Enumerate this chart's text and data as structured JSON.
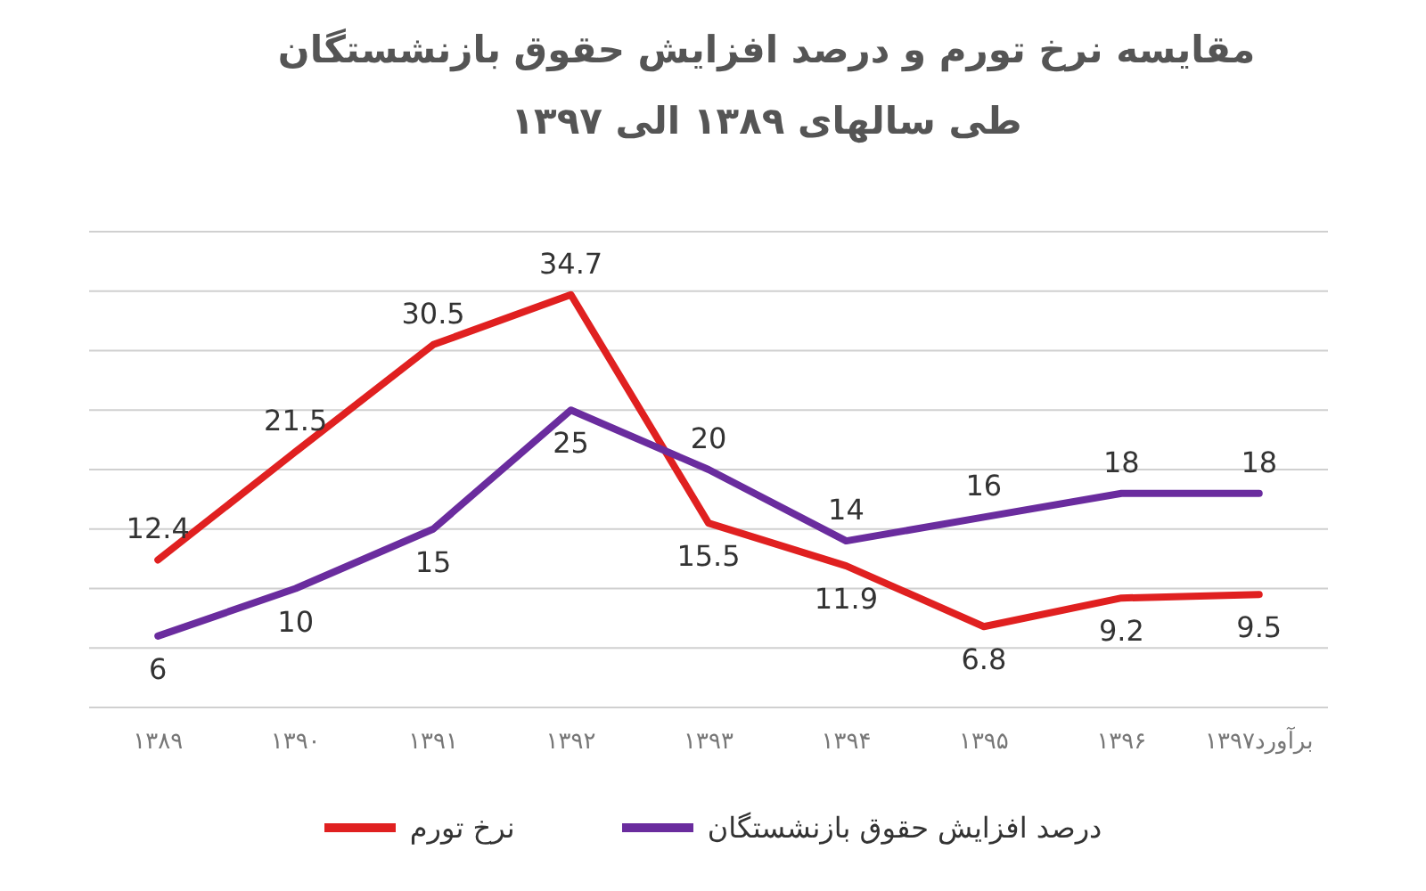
{
  "chart_data": {
    "type": "line",
    "title": "مقایسه نرخ تورم و درصد افزایش حقوق بازنشستگان طی سالهای ۱۳۸۹ الی ۱۳۹۷",
    "categories": [
      "۱۳۸۹",
      "۱۳۹۰",
      "۱۳۹۱",
      "۱۳۹۲",
      "۱۳۹۳",
      "۱۳۹۴",
      "۱۳۹۵",
      "۱۳۹۶",
      "برآورد۱۳۹۷"
    ],
    "series": [
      {
        "name": "نرخ تورم",
        "color": "#e02020",
        "values": [
          12.4,
          21.5,
          30.5,
          34.7,
          15.5,
          11.9,
          6.8,
          9.2,
          9.5
        ]
      },
      {
        "name": "درصد افزایش حقوق بازنشستگان",
        "color": "#6a2c9e",
        "values": [
          6,
          10,
          15,
          25,
          20,
          14,
          16,
          18,
          18
        ]
      }
    ],
    "ylim": [
      0,
      40
    ],
    "yticks": [
      {
        "value": 0,
        "label": null
      },
      {
        "value": 5,
        "label": null
      },
      {
        "value": 10,
        "label": null
      },
      {
        "value": 15,
        "label": null
      },
      {
        "value": 20,
        "label": null
      },
      {
        "value": 25,
        "label": null
      },
      {
        "value": 30,
        "label": null
      },
      {
        "value": 35,
        "label": null
      },
      {
        "value": 40,
        "label": null
      }
    ],
    "grid": "y",
    "data_labels": true,
    "legend": "bottom",
    "marker": "none",
    "line_style": "solid"
  }
}
